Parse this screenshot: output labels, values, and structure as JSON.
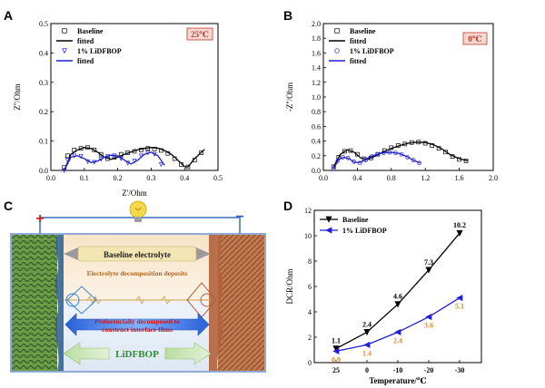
{
  "colors": {
    "baseline": "#000000",
    "lidfbop": "#1f1fd6",
    "orange": "#e08a1e",
    "tempbox_fill": "#f6d7d2",
    "tempbox_stroke": "#c0392b",
    "tempbox_text": "#c0392b"
  },
  "panels": {
    "A": {
      "label": "A",
      "temp_badge": "25℃"
    },
    "B": {
      "label": "B",
      "temp_badge": "0℃"
    },
    "C": {
      "label": "C",
      "plus_sign": "+",
      "minus_sign": "−",
      "top_banner": "Baseline electrolyte",
      "top_deposit": "Electrolyte decomposition deposits",
      "mid_text_1": "Preferencially decomposed to",
      "mid_text_2": "construct interface films",
      "bottom_label": "LiDFBOP",
      "colors": {
        "frame": "#6b8fc7",
        "electrolyte_top": "#f5e6cf",
        "electrolyte_bottom": "#e9f0f8",
        "left_electrode": "#5a8a3a",
        "right_electrode": "#b2623a",
        "banner_fill": "#f3e6b4",
        "mid_arrow": "#3c6fe0",
        "green_text": "#2e8b2e",
        "bulb": "#f5d94a"
      }
    },
    "D": {
      "label": "D"
    }
  },
  "chart_data": [
    {
      "panel": "A",
      "type": "scatter",
      "xlabel": "Z'/Ohm",
      "ylabel": "Z''/Ohm",
      "xlim": [
        0.0,
        0.5
      ],
      "ylim": [
        0.0,
        0.5
      ],
      "xticks": [
        "0.0",
        "0.1",
        "0.2",
        "0.3",
        "0.4",
        "0.5"
      ],
      "yticks": [
        "0.0",
        "0.1",
        "0.2",
        "0.3",
        "0.4",
        "0.5"
      ],
      "legend_position": "top-left",
      "series": [
        {
          "name": "Baseline",
          "kind": "markers",
          "marker": "square",
          "color": "#000000",
          "x": [
            0.04,
            0.05,
            0.07,
            0.09,
            0.11,
            0.13,
            0.15,
            0.17,
            0.19,
            0.21,
            0.23,
            0.25,
            0.27,
            0.29,
            0.31,
            0.33,
            0.35,
            0.37,
            0.39,
            0.41,
            0.43,
            0.45
          ],
          "y": [
            0.01,
            0.05,
            0.07,
            0.075,
            0.078,
            0.07,
            0.055,
            0.04,
            0.045,
            0.055,
            0.06,
            0.065,
            0.07,
            0.075,
            0.073,
            0.068,
            0.058,
            0.04,
            0.02,
            0.012,
            0.035,
            0.06
          ]
        },
        {
          "name": "fitted",
          "kind": "line",
          "color": "#000000",
          "x": [
            0.04,
            0.06,
            0.08,
            0.1,
            0.12,
            0.14,
            0.16,
            0.18,
            0.2,
            0.22,
            0.24,
            0.26,
            0.28,
            0.3,
            0.32,
            0.34,
            0.36,
            0.38,
            0.4,
            0.41,
            0.43,
            0.46
          ],
          "y": [
            0.0,
            0.055,
            0.07,
            0.078,
            0.075,
            0.062,
            0.045,
            0.038,
            0.045,
            0.055,
            0.063,
            0.07,
            0.075,
            0.078,
            0.076,
            0.068,
            0.055,
            0.035,
            0.013,
            0.012,
            0.04,
            0.072
          ]
        },
        {
          "name": "1% LiDFBOP",
          "kind": "markers",
          "marker": "triangle-down",
          "color": "#1f1fd6",
          "x": [
            0.04,
            0.05,
            0.07,
            0.09,
            0.11,
            0.13,
            0.15,
            0.17,
            0.19,
            0.21,
            0.23,
            0.25,
            0.27,
            0.29,
            0.31,
            0.33
          ],
          "y": [
            0.0,
            0.035,
            0.05,
            0.048,
            0.03,
            0.028,
            0.038,
            0.048,
            0.05,
            0.04,
            0.025,
            0.032,
            0.05,
            0.06,
            0.055,
            0.02
          ]
        },
        {
          "name": "fitted",
          "kind": "line",
          "color": "#1f1fd6",
          "x": [
            0.04,
            0.06,
            0.08,
            0.1,
            0.12,
            0.14,
            0.16,
            0.18,
            0.2,
            0.22,
            0.24,
            0.26,
            0.28,
            0.3,
            0.32,
            0.34
          ],
          "y": [
            0.0,
            0.045,
            0.05,
            0.04,
            0.027,
            0.032,
            0.045,
            0.052,
            0.05,
            0.035,
            0.022,
            0.035,
            0.055,
            0.062,
            0.05,
            0.018
          ]
        }
      ]
    },
    {
      "panel": "B",
      "type": "scatter",
      "xlabel": "",
      "ylabel": "-Z''/Ohm",
      "xlim": [
        0.0,
        2.0
      ],
      "ylim": [
        0.0,
        2.0
      ],
      "xticks": [
        "0.0",
        "0.4",
        "0.8",
        "1.2",
        "1.6",
        "2.0"
      ],
      "yticks": [
        "0.0",
        "0.2",
        "0.4",
        "0.6",
        "0.8",
        "1.0",
        "1.2",
        "1.4",
        "1.6",
        "1.8",
        "2.0"
      ],
      "legend_position": "top-left",
      "series": [
        {
          "name": "Baseline",
          "kind": "markers",
          "marker": "square",
          "color": "#000000",
          "x": [
            0.12,
            0.18,
            0.25,
            0.32,
            0.4,
            0.48,
            0.56,
            0.64,
            0.72,
            0.8,
            0.88,
            0.96,
            1.04,
            1.12,
            1.2,
            1.28,
            1.36,
            1.44,
            1.52,
            1.6,
            1.68
          ],
          "y": [
            0.05,
            0.18,
            0.26,
            0.27,
            0.22,
            0.16,
            0.17,
            0.22,
            0.27,
            0.31,
            0.34,
            0.36,
            0.38,
            0.385,
            0.37,
            0.34,
            0.3,
            0.25,
            0.19,
            0.15,
            0.13
          ]
        },
        {
          "name": "fitted",
          "kind": "line",
          "color": "#000000",
          "x": [
            0.12,
            0.2,
            0.28,
            0.36,
            0.44,
            0.52,
            0.6,
            0.7,
            0.8,
            0.9,
            1.0,
            1.1,
            1.2,
            1.3,
            1.4,
            1.5,
            1.6,
            1.7
          ],
          "y": [
            0.05,
            0.22,
            0.28,
            0.25,
            0.17,
            0.15,
            0.19,
            0.25,
            0.3,
            0.34,
            0.37,
            0.385,
            0.38,
            0.35,
            0.29,
            0.21,
            0.16,
            0.13
          ]
        },
        {
          "name": "1% LiDFBOP",
          "kind": "markers",
          "marker": "circle",
          "color": "#1f1fd6",
          "x": [
            0.12,
            0.17,
            0.23,
            0.29,
            0.36,
            0.43,
            0.5,
            0.57,
            0.64,
            0.71,
            0.78,
            0.85,
            0.92,
            0.99,
            1.06,
            1.13
          ],
          "y": [
            0.02,
            0.13,
            0.18,
            0.17,
            0.12,
            0.1,
            0.14,
            0.19,
            0.22,
            0.24,
            0.245,
            0.24,
            0.22,
            0.18,
            0.14,
            0.1
          ]
        },
        {
          "name": "fitted",
          "kind": "line",
          "color": "#1f1fd6",
          "x": [
            0.12,
            0.18,
            0.24,
            0.3,
            0.37,
            0.44,
            0.51,
            0.58,
            0.66,
            0.74,
            0.82,
            0.9,
            0.98,
            1.06,
            1.14
          ],
          "y": [
            0.02,
            0.15,
            0.18,
            0.16,
            0.11,
            0.11,
            0.16,
            0.2,
            0.23,
            0.245,
            0.245,
            0.23,
            0.19,
            0.14,
            0.1
          ]
        }
      ]
    },
    {
      "panel": "D",
      "type": "line",
      "xlabel": "Temperature/℃",
      "ylabel": "DCR/Ohm",
      "categories": [
        "25",
        "0",
        "-10",
        "-20",
        "-30"
      ],
      "ylim": [
        0,
        12
      ],
      "yticks": [
        "0",
        "2",
        "4",
        "6",
        "8",
        "10",
        "12"
      ],
      "legend_position": "top-left",
      "series": [
        {
          "name": "Baseline",
          "marker": "triangle-down",
          "color": "#000000",
          "values": [
            1.1,
            2.4,
            4.6,
            7.3,
            10.2
          ],
          "labels": [
            "1.1",
            "2.4",
            "4.6",
            "7.3",
            "10.2"
          ]
        },
        {
          "name": "1% LiDFBOP",
          "marker": "triangle-left",
          "color": "#1f1fd6",
          "label_color": "#e08a1e",
          "values": [
            0.9,
            1.4,
            2.4,
            3.6,
            5.1
          ],
          "labels": [
            "0.9",
            "1.4",
            "2.4",
            "3.6",
            "5.1"
          ]
        }
      ]
    }
  ]
}
